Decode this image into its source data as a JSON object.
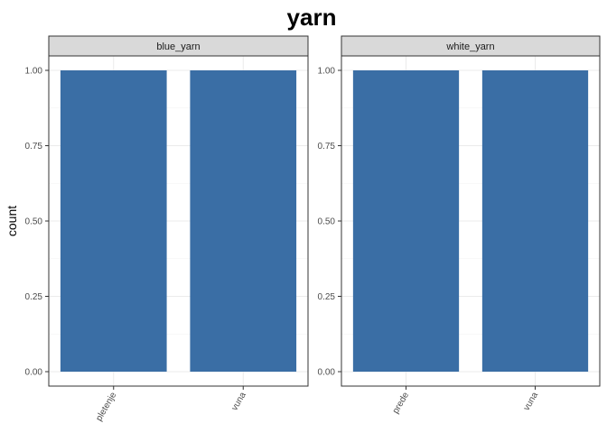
{
  "chart_data": {
    "type": "bar",
    "title": "yarn",
    "ylabel": "count",
    "xlabel": "",
    "ylim": [
      0,
      1.05
    ],
    "yticks": [
      "0.00",
      "0.25",
      "0.50",
      "0.75",
      "1.00"
    ],
    "bar_color": "#3A6EA5",
    "strip_fill": "#D9D9D9",
    "grid": true,
    "panels": [
      {
        "strip": "blue_yarn",
        "categories": [
          "pletenje",
          "vuna"
        ],
        "values": [
          1,
          1
        ]
      },
      {
        "strip": "white_yarn",
        "categories": [
          "prede",
          "vuna"
        ],
        "values": [
          1,
          1
        ]
      }
    ]
  }
}
